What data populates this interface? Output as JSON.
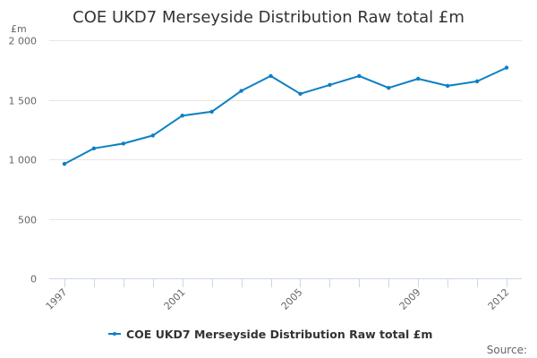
{
  "chart_data": {
    "type": "line",
    "title": "COE UKD7 Merseyside Distribution Raw total £m",
    "ylabel": "£m",
    "xlabel": "",
    "ylim": [
      0,
      2000
    ],
    "yticks": [
      0,
      500,
      1000,
      1500,
      2000
    ],
    "ytick_labels": [
      "0",
      "500",
      "1 000",
      "1 500",
      "2 000"
    ],
    "x": [
      1997,
      1998,
      1999,
      2000,
      2001,
      2002,
      2003,
      2004,
      2005,
      2006,
      2007,
      2008,
      2009,
      2010,
      2011,
      2012
    ],
    "xtick_labels": [
      "1997",
      "2001",
      "2005",
      "2009",
      "2012"
    ],
    "grid": true,
    "legend_position": "bottom-center",
    "series": [
      {
        "name": "COE UKD7 Merseyside Distribution Raw total £m",
        "color": "#0b80c4",
        "values": [
          962,
          1092,
          1132,
          1200,
          1367,
          1400,
          1575,
          1700,
          1550,
          1625,
          1700,
          1600,
          1677,
          1617,
          1655,
          1770
        ]
      }
    ],
    "source_label": "Source:"
  }
}
